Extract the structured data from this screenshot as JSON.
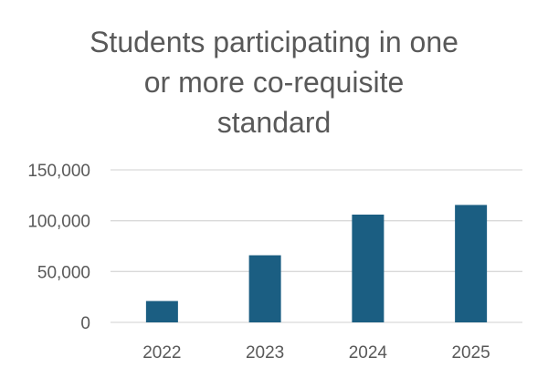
{
  "chart_data": {
    "type": "bar",
    "title": "Students participating in one or more co-requisite standard",
    "title_lines": [
      "Students participating in one",
      "or more co-requisite",
      "standard"
    ],
    "categories": [
      "2022",
      "2023",
      "2024",
      "2025"
    ],
    "values": [
      21000,
      66000,
      106000,
      115500
    ],
    "ylim": [
      0,
      150000
    ],
    "y_ticks": [
      0,
      50000,
      100000,
      150000
    ],
    "y_tick_labels": [
      "0",
      "50,000",
      "100,000",
      "150,000"
    ],
    "xlabel": "",
    "ylabel": "",
    "grid": true,
    "legend": "none",
    "bar_color": "#1b5e82",
    "grid_color": "#d9d9d9",
    "text_color": "#595959"
  }
}
